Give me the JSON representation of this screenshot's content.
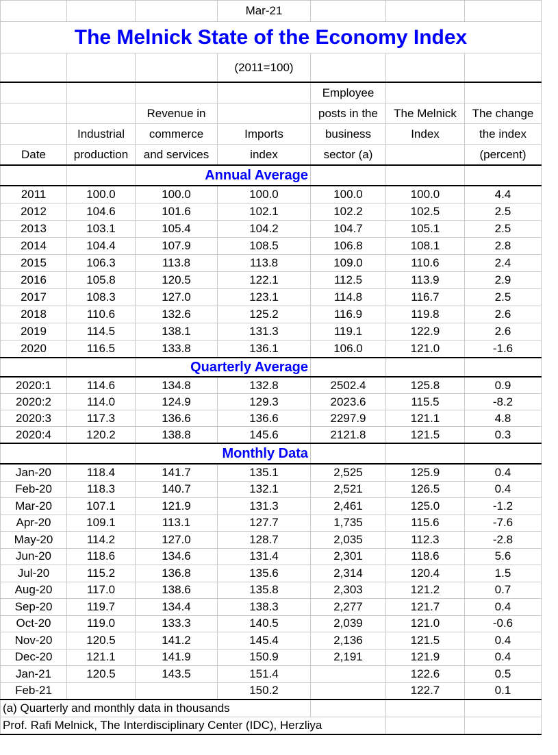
{
  "meta": {
    "date_label": "Mar-21",
    "title": "The Melnick State of the Economy Index",
    "subtitle": "(2011=100)"
  },
  "colors": {
    "accent_blue": "#0000FE",
    "gridline_gray": "#C9C9C9",
    "rule_black": "#000000",
    "background": "#FFFFFF"
  },
  "header": {
    "rows": [
      [
        "",
        "",
        "",
        "",
        "Employee",
        "",
        ""
      ],
      [
        "",
        "",
        "Revenue in",
        "",
        "posts in the",
        "The Melnick",
        "The change"
      ],
      [
        "",
        "Industrial",
        "commerce",
        "Imports",
        "business",
        "Index",
        "the index"
      ],
      [
        "Date",
        "production",
        "and services",
        "index",
        "sector (a)",
        "",
        "(percent)"
      ]
    ]
  },
  "sections": [
    {
      "label": "Annual Average",
      "rows": [
        [
          "2011",
          "100.0",
          "100.0",
          "100.0",
          "100.0",
          "100.0",
          "4.4"
        ],
        [
          "2012",
          "104.6",
          "101.6",
          "102.1",
          "102.2",
          "102.5",
          "2.5"
        ],
        [
          "2013",
          "103.1",
          "105.4",
          "104.2",
          "104.7",
          "105.1",
          "2.5"
        ],
        [
          "2014",
          "104.4",
          "107.9",
          "108.5",
          "106.8",
          "108.1",
          "2.8"
        ],
        [
          "2015",
          "106.3",
          "113.8",
          "113.8",
          "109.0",
          "110.6",
          "2.4"
        ],
        [
          "2016",
          "105.8",
          "120.5",
          "122.1",
          "112.5",
          "113.9",
          "2.9"
        ],
        [
          "2017",
          "108.3",
          "127.0",
          "123.1",
          "114.8",
          "116.7",
          "2.5"
        ],
        [
          "2018",
          "110.6",
          "132.6",
          "125.2",
          "116.9",
          "119.8",
          "2.6"
        ],
        [
          "2019",
          "114.5",
          "138.1",
          "131.3",
          "119.1",
          "122.9",
          "2.6"
        ],
        [
          "2020",
          "116.5",
          "133.8",
          "136.1",
          "106.0",
          "121.0",
          "-1.6"
        ]
      ]
    },
    {
      "label": "Quarterly Average",
      "rows": [
        [
          "2020:1",
          "114.6",
          "134.8",
          "132.8",
          "2502.4",
          "125.8",
          "0.9"
        ],
        [
          "2020:2",
          "114.0",
          "124.9",
          "129.3",
          "2023.6",
          "115.5",
          "-8.2"
        ],
        [
          "2020:3",
          "117.3",
          "136.6",
          "136.6",
          "2297.9",
          "121.1",
          "4.8"
        ],
        [
          "2020:4",
          "120.2",
          "138.8",
          "145.6",
          "2121.8",
          "121.5",
          "0.3"
        ]
      ]
    },
    {
      "label": "Monthly Data",
      "rows": [
        [
          "Jan-20",
          "118.4",
          "141.7",
          "135.1",
          "2,525",
          "125.9",
          "0.4"
        ],
        [
          "Feb-20",
          "118.3",
          "140.7",
          "132.1",
          "2,521",
          "126.5",
          "0.4"
        ],
        [
          "Mar-20",
          "107.1",
          "121.9",
          "131.3",
          "2,461",
          "125.0",
          "-1.2"
        ],
        [
          "Apr-20",
          "109.1",
          "113.1",
          "127.7",
          "1,735",
          "115.6",
          "-7.6"
        ],
        [
          "May-20",
          "114.2",
          "127.0",
          "128.7",
          "2,035",
          "112.3",
          "-2.8"
        ],
        [
          "Jun-20",
          "118.6",
          "134.6",
          "131.4",
          "2,301",
          "118.6",
          "5.6"
        ],
        [
          "Jul-20",
          "115.2",
          "136.8",
          "135.6",
          "2,314",
          "120.4",
          "1.5"
        ],
        [
          "Aug-20",
          "117.0",
          "138.6",
          "135.8",
          "2,303",
          "121.2",
          "0.7"
        ],
        [
          "Sep-20",
          "119.7",
          "134.4",
          "138.3",
          "2,277",
          "121.7",
          "0.4"
        ],
        [
          "Oct-20",
          "119.0",
          "133.3",
          "140.5",
          "2,039",
          "121.0",
          "-0.6"
        ],
        [
          "Nov-20",
          "120.5",
          "141.2",
          "145.4",
          "2,136",
          "121.5",
          "0.4"
        ],
        [
          "Dec-20",
          "121.1",
          "141.9",
          "150.9",
          "2,191",
          "121.9",
          "0.4"
        ],
        [
          "Jan-21",
          "120.5",
          "143.5",
          "151.4",
          "",
          "122.6",
          "0.5"
        ],
        [
          "Feb-21",
          "",
          "",
          "150.2",
          "",
          "122.7",
          "0.1"
        ]
      ]
    }
  ],
  "footnotes": [
    "(a) Quarterly and monthly data in thousands",
    "Prof. Rafi Melnick, The Interdisciplinary Center (IDC), Herzliya"
  ]
}
